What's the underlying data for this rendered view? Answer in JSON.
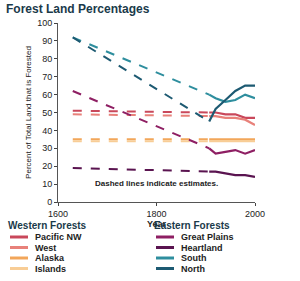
{
  "chart_data": {
    "type": "line",
    "title": "Forest Land Percentages",
    "x_label": "Year",
    "y_label": "Percent of Total Land that is Forested",
    "note": "Dashed lines indicate estimates.",
    "estimated_through": 1907,
    "x": [
      1630,
      1907,
      1920,
      1940,
      1960,
      1980,
      2000
    ],
    "series": [
      {
        "name": "Pacific NW",
        "group": "Western Forests",
        "color": "#c9485b",
        "values": [
          51,
          50,
          50,
          49,
          49,
          47,
          47
        ]
      },
      {
        "name": "West",
        "group": "Western Forests",
        "color": "#e8817a",
        "values": [
          49,
          48,
          48,
          47,
          47,
          46,
          43
        ]
      },
      {
        "name": "Alaska",
        "group": "Western Forests",
        "color": "#f2a65a",
        "values": [
          35,
          35,
          35,
          35,
          35,
          35,
          35
        ]
      },
      {
        "name": "Islands",
        "group": "Western Forests",
        "color": "#f8cd96",
        "values": [
          34,
          34,
          34,
          34,
          34,
          34,
          34
        ]
      },
      {
        "name": "Great Plains",
        "group": "Eastern Forests",
        "color": "#8e1f63",
        "values": [
          62,
          30,
          27,
          28,
          29,
          27,
          29
        ]
      },
      {
        "name": "Heartland",
        "group": "Eastern Forests",
        "color": "#5a1450",
        "values": [
          19,
          17,
          17,
          16,
          15,
          15,
          14
        ]
      },
      {
        "name": "South",
        "group": "Eastern Forests",
        "color": "#2e8e9e",
        "values": [
          92,
          60,
          58,
          56,
          57,
          60,
          58
        ]
      },
      {
        "name": "North",
        "group": "Eastern Forests",
        "color": "#1d5a72",
        "values": [
          92,
          45,
          52,
          57,
          62,
          65,
          65
        ]
      }
    ],
    "xlim": [
      1600,
      2000
    ],
    "xticks": [
      1600,
      1800,
      2000
    ],
    "ylim": [
      0,
      100
    ],
    "yticks": [
      0,
      10,
      20,
      30,
      40,
      50,
      60,
      70,
      80,
      90,
      100
    ],
    "grid": false
  }
}
